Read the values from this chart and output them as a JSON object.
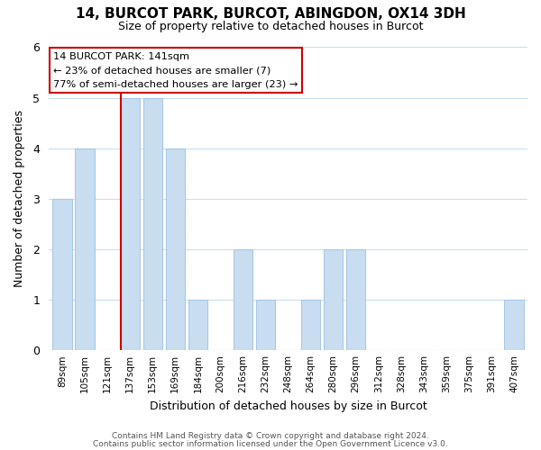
{
  "title": "14, BURCOT PARK, BURCOT, ABINGDON, OX14 3DH",
  "subtitle": "Size of property relative to detached houses in Burcot",
  "xlabel": "Distribution of detached houses by size in Burcot",
  "ylabel": "Number of detached properties",
  "bar_labels": [
    "89sqm",
    "105sqm",
    "121sqm",
    "137sqm",
    "153sqm",
    "169sqm",
    "184sqm",
    "200sqm",
    "216sqm",
    "232sqm",
    "248sqm",
    "264sqm",
    "280sqm",
    "296sqm",
    "312sqm",
    "328sqm",
    "343sqm",
    "359sqm",
    "375sqm",
    "391sqm",
    "407sqm"
  ],
  "bar_values": [
    3,
    4,
    0,
    5,
    5,
    4,
    1,
    0,
    2,
    1,
    0,
    1,
    2,
    2,
    0,
    0,
    0,
    0,
    0,
    0,
    1
  ],
  "bar_color": "#c9ddf0",
  "bar_edge_color": "#a8c8e8",
  "highlight_index": 3,
  "highlight_line_color": "#cc0000",
  "ylim": [
    0,
    6
  ],
  "yticks": [
    0,
    1,
    2,
    3,
    4,
    5,
    6
  ],
  "annotation_line1": "14 BURCOT PARK: 141sqm",
  "annotation_line2": "← 23% of detached houses are smaller (7)",
  "annotation_line3": "77% of semi-detached houses are larger (23) →",
  "footer_line1": "Contains HM Land Registry data © Crown copyright and database right 2024.",
  "footer_line2": "Contains public sector information licensed under the Open Government Licence v3.0.",
  "background_color": "#ffffff",
  "grid_color": "#c8dff0"
}
